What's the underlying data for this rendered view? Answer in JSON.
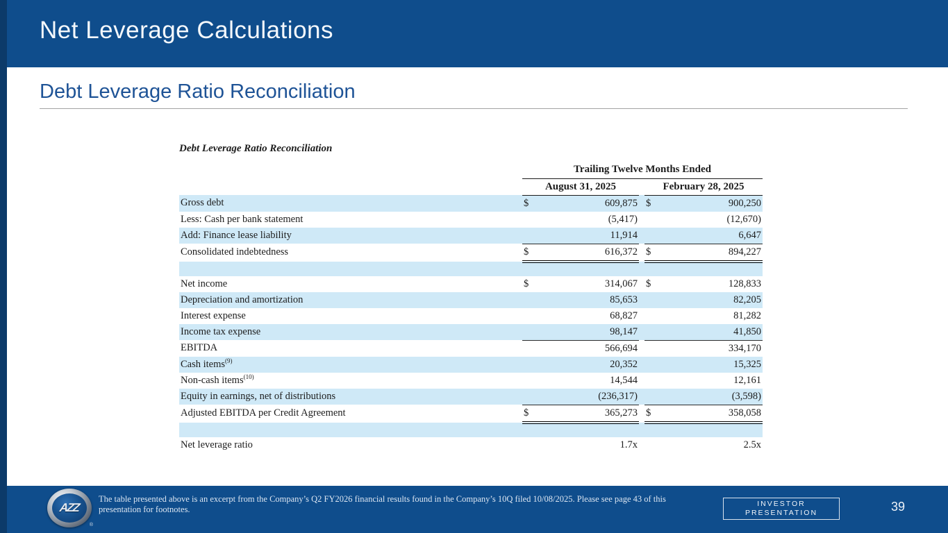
{
  "colors": {
    "navy": "#0f4d8c",
    "navy_dark_strip": "#0c3a69",
    "stripe_blue": "#cfe9f7",
    "heading_blue": "#1e5396"
  },
  "header": {
    "title": "Net Leverage Calculations"
  },
  "section": {
    "title": "Debt Leverage Ratio Reconciliation"
  },
  "table": {
    "title": "Debt Leverage Ratio Reconciliation",
    "col_group_header": "Trailing Twelve Months Ended",
    "columns": [
      "August 31, 2025",
      "February 28, 2025"
    ],
    "rows": [
      {
        "label": "Gross debt",
        "dollar1": "$",
        "v1": "609,875",
        "dollar2": "$",
        "v2": "900,250",
        "shade": true
      },
      {
        "label": "Less: Cash per bank statement",
        "v1": "(5,417)",
        "v2": "(12,670)"
      },
      {
        "label": "Add: Finance lease liability",
        "v1": "11,914",
        "v2": "6,647",
        "shade": true,
        "rule": "single-below"
      },
      {
        "label": "Consolidated indebtedness",
        "dollar1": "$",
        "v1": "616,372",
        "dollar2": "$",
        "v2": "894,227",
        "rule": "double-below"
      },
      {
        "label": "",
        "spacer": true,
        "shade": true
      },
      {
        "label": "Net income",
        "dollar1": "$",
        "v1": "314,067",
        "dollar2": "$",
        "v2": "128,833"
      },
      {
        "label": "Depreciation and amortization",
        "v1": "85,653",
        "v2": "82,205",
        "shade": true
      },
      {
        "label": "Interest expense",
        "v1": "68,827",
        "v2": "81,282"
      },
      {
        "label": "Income tax expense",
        "v1": "98,147",
        "v2": "41,850",
        "shade": true,
        "rule": "single-below"
      },
      {
        "label": "EBITDA",
        "v1": "566,694",
        "v2": "334,170"
      },
      {
        "label": "Cash items",
        "sup": "(9)",
        "v1": "20,352",
        "v2": "15,325",
        "shade": true
      },
      {
        "label": "Non-cash items",
        "sup": "(10)",
        "v1": "14,544",
        "v2": "12,161"
      },
      {
        "label": "Equity in earnings, net of distributions",
        "v1": "(236,317)",
        "v2": "(3,598)",
        "shade": true,
        "rule": "single-below"
      },
      {
        "label": "Adjusted EBITDA per Credit Agreement",
        "dollar1": "$",
        "v1": "365,273",
        "dollar2": "$",
        "v2": "358,058",
        "rule": "double-below"
      },
      {
        "label": "",
        "spacer": true,
        "shade": true
      },
      {
        "label": "Net leverage ratio",
        "v1": "1.7x",
        "v2": "2.5x"
      }
    ]
  },
  "footer": {
    "note": "The table presented above is an excerpt from the Company’s Q2 FY2026 financial results found in the Company’s 10Q filed 10/08/2025. Please see page 43 of this presentation for footnotes.",
    "badge_line1": "INVESTOR",
    "badge_line2": "PRESENTATION",
    "page_number": "39",
    "logo_text": "AZZ",
    "logo_registered_mark": "®"
  }
}
